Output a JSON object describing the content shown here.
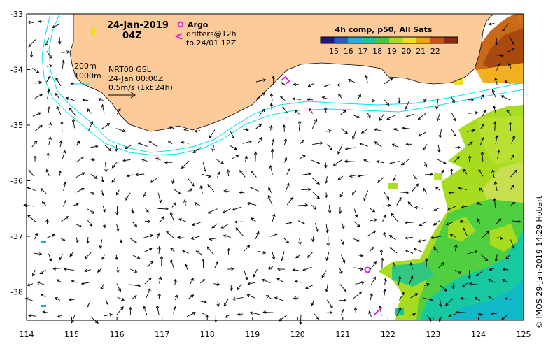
{
  "map": {
    "date": "24-Jan-2019",
    "time": "04Z",
    "legend": {
      "argo_label": "Argo",
      "drifter_label": "drifters@12h",
      "drifter_label2": "to 24/01 12Z"
    },
    "contours": {
      "c200": "200m",
      "c1000": "1000m"
    },
    "product": {
      "line1": "NRT00 GSL",
      "line2": "24-Jan 00:00Z",
      "line3": "0.5m/s (1kt 24h)"
    },
    "colorbar": {
      "title": "4h comp, p50, All Sats",
      "ticks": [
        "15",
        "16",
        "17",
        "18",
        "19",
        "20",
        "21",
        "22"
      ],
      "colors": [
        "#1a1a8c",
        "#1f5fd0",
        "#1fb0e0",
        "#10c8a0",
        "#40cc40",
        "#a8dc20",
        "#f0e020",
        "#f0a010",
        "#d05010",
        "#8c2a10"
      ]
    },
    "credit": "© IMOS 29-Jan-2019 14:29 Hobart",
    "x_ticks": [
      "114",
      "115",
      "116",
      "117",
      "118",
      "119",
      "120",
      "121",
      "122",
      "123",
      "124",
      "125"
    ],
    "y_ticks": [
      "-33",
      "-34",
      "-35",
      "-36",
      "-37",
      "-38"
    ],
    "colors": {
      "land": "#fdca9a",
      "isobath": "#00e5ee",
      "argo": "#e020e0",
      "water": "#ffffff"
    }
  }
}
